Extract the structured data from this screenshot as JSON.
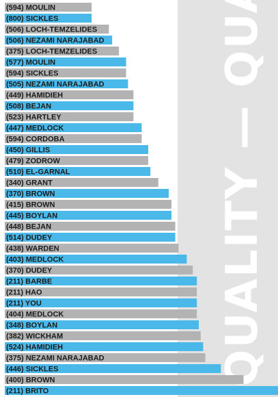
{
  "chart_data": {
    "type": "bar",
    "orientation": "horizontal",
    "title": "",
    "xlabel": "",
    "ylabel": "",
    "grid": false,
    "legend": "none",
    "watermark": "QUALITY — QUALITY",
    "colors": {
      "gray": "#b3b3b3",
      "blue": "#4ab8e8",
      "panel": "#e3e3e3",
      "text": "#1a1a1a"
    },
    "xlim": [
      0,
      100
    ],
    "categories": [
      "(594) MOULIN",
      "(800) SICKLES",
      "(506) LOCH-TEMZELIDES",
      "(506) NEZAMI NARAJABAD",
      "(375) LOCH-TEMZELIDES",
      "(577) MOULIN",
      "(594) SICKLES",
      "(505) NEZAMI NARAJABAD",
      "(449) HAMIDIEH",
      "(508) BEJAN",
      "(523) HARTLEY",
      "(447) MEDLOCK",
      "(594) CORDOBA",
      "(450) GILLIS",
      "(479) ZODROW",
      "(510) EL-GARNAL",
      "(340) GRANT",
      "(370) BROWN",
      "(415) BROWN",
      "(445) BOYLAN",
      "(448) BEJAN",
      "(514) DUDEY",
      "(438) WARDEN",
      "(403) MEDLOCK",
      "(370) DUDEY",
      "(211) BARBE",
      "(211) HAO",
      "(211) YOU",
      "(404) MEDLOCK",
      "(348) BOYLAN",
      "(382) WICKHAM",
      "(524) HAMIDIEH",
      "(375) NEZAMI NARAJABAD",
      "(446) SICKLES",
      "(400) BROWN",
      "(211) BRITO"
    ],
    "values": [
      31.8,
      31.8,
      38.1,
      39.3,
      41.8,
      44.4,
      44.4,
      45.1,
      47.1,
      47.1,
      47.1,
      50.1,
      50.1,
      52.5,
      52.5,
      53.3,
      56.2,
      60.0,
      61.0,
      61.0,
      62.4,
      62.4,
      63.6,
      66.6,
      68.8,
      70.3,
      70.3,
      70.3,
      70.3,
      71.0,
      71.7,
      72.6,
      73.4,
      79.1,
      87.4,
      100.0
    ],
    "bar_colors": [
      "gray",
      "blue",
      "gray",
      "blue",
      "gray",
      "blue",
      "gray",
      "blue",
      "gray",
      "blue",
      "gray",
      "blue",
      "gray",
      "blue",
      "gray",
      "blue",
      "gray",
      "blue",
      "gray",
      "blue",
      "gray",
      "blue",
      "gray",
      "blue",
      "gray",
      "blue",
      "gray",
      "blue",
      "gray",
      "blue",
      "gray",
      "blue",
      "gray",
      "blue",
      "gray",
      "blue"
    ]
  }
}
